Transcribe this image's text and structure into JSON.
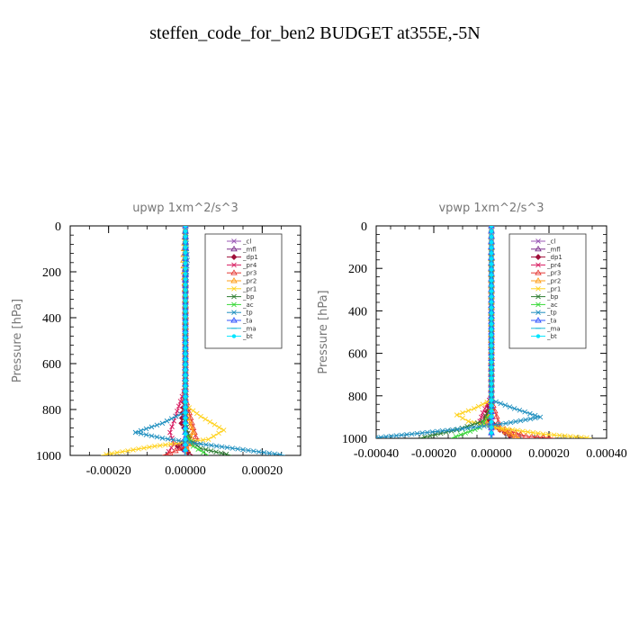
{
  "title": "steffen_code_for_ben2  BUDGET at355E,-5N",
  "colors": {
    "cl": "#9b59b6",
    "mfl": "#7b2d8b",
    "dp1": "#a0103a",
    "pr4": "#d81b60",
    "pr3": "#e53935",
    "pr2": "#ff9f1a",
    "pr1": "#ffd21f",
    "bp": "#2e7d32",
    "ac": "#39d939",
    "tp": "#1f8fbf",
    "ta": "#3355ff",
    "ma": "#22b8d8",
    "bt": "#00e5ff",
    "ink": "#000000",
    "label_gray": "#777777"
  },
  "chart_data": [
    {
      "type": "line",
      "title": "upwp   1xm^2/s^3",
      "xlabel": "",
      "ylabel": "Pressure  [hPa]",
      "xlim": [
        -0.0003,
        0.0003
      ],
      "ylim": [
        1000,
        0
      ],
      "xticks": [
        "-0.00020",
        "0.00000",
        "0.00020"
      ],
      "yticks": [
        "0",
        "200",
        "400",
        "600",
        "800",
        "1000"
      ],
      "legend_position": "top-right",
      "series": [
        {
          "name": "_cl",
          "color_key": "cl",
          "marker": "x",
          "points": [
            [
              0,
              0
            ],
            [
              0,
              200
            ],
            [
              0,
              400
            ],
            [
              0,
              600
            ],
            [
              0,
              800
            ],
            [
              0,
              1000
            ]
          ]
        },
        {
          "name": "_mfl",
          "color_key": "mfl",
          "marker": "triangle",
          "points": [
            [
              0,
              0
            ],
            [
              0,
              300
            ],
            [
              0,
              600
            ],
            [
              0,
              850
            ],
            [
              0,
              950
            ],
            [
              0,
              1000
            ]
          ]
        },
        {
          "name": "_dp1",
          "color_key": "dp1",
          "marker": "diamond",
          "points": [
            [
              0,
              0
            ],
            [
              0,
              700
            ],
            [
              -1e-05,
              860
            ],
            [
              1e-05,
              920
            ],
            [
              -2e-05,
              960
            ],
            [
              2e-05,
              1000
            ]
          ]
        },
        {
          "name": "_pr4",
          "color_key": "pr4",
          "marker": "x",
          "points": [
            [
              0,
              0
            ],
            [
              0,
              700
            ],
            [
              -3e-05,
              850
            ],
            [
              -4e-05,
              900
            ],
            [
              -3e-05,
              950
            ],
            [
              -5e-05,
              1000
            ]
          ]
        },
        {
          "name": "_pr3",
          "color_key": "pr3",
          "marker": "triangle",
          "points": [
            [
              0,
              0
            ],
            [
              0,
              750
            ],
            [
              2e-05,
              880
            ],
            [
              3e-05,
              940
            ],
            [
              -4e-05,
              990
            ],
            [
              -6e-05,
              1000
            ]
          ]
        },
        {
          "name": "_pr2",
          "color_key": "pr2",
          "marker": "triangle",
          "points": [
            [
              0,
              0
            ],
            [
              -5e-06,
              150
            ],
            [
              0,
              300
            ],
            [
              0,
              800
            ],
            [
              2e-05,
              900
            ],
            [
              0,
              1000
            ]
          ]
        },
        {
          "name": "_pr1",
          "color_key": "pr1",
          "marker": "x",
          "points": [
            [
              0,
              0
            ],
            [
              0,
              780
            ],
            [
              4e-05,
              830
            ],
            [
              0.0001,
              890
            ],
            [
              6e-05,
              930
            ],
            [
              -8e-05,
              960
            ],
            [
              -0.00022,
              1000
            ]
          ]
        },
        {
          "name": "_bp",
          "color_key": "bp",
          "marker": "x",
          "points": [
            [
              0,
              0
            ],
            [
              0,
              850
            ],
            [
              1e-05,
              930
            ],
            [
              4e-05,
              970
            ],
            [
              0.00012,
              1000
            ]
          ]
        },
        {
          "name": "_ac",
          "color_key": "ac",
          "marker": "x",
          "points": [
            [
              0,
              0
            ],
            [
              0,
              900
            ],
            [
              2e-05,
              960
            ],
            [
              6e-05,
              1000
            ]
          ]
        },
        {
          "name": "_tp",
          "color_key": "tp",
          "marker": "x",
          "points": [
            [
              0,
              0
            ],
            [
              5e-06,
              150
            ],
            [
              0,
              300
            ],
            [
              0,
              810
            ],
            [
              -6e-05,
              860
            ],
            [
              -0.00013,
              900
            ],
            [
              -6e-05,
              925
            ],
            [
              4e-05,
              950
            ],
            [
              0.00015,
              975
            ],
            [
              0.00026,
              1000
            ]
          ]
        },
        {
          "name": "_ta",
          "color_key": "ta",
          "marker": "triangle",
          "points": [
            [
              0,
              0
            ],
            [
              0,
              500
            ],
            [
              0,
              900
            ],
            [
              0,
              1000
            ]
          ]
        },
        {
          "name": "_ma",
          "color_key": "ma",
          "marker": "dash",
          "points": [
            [
              0,
              0
            ],
            [
              0,
              1000
            ]
          ]
        },
        {
          "name": "_bt",
          "color_key": "bt",
          "marker": "dot",
          "points": [
            [
              0,
              0
            ],
            [
              0,
              1000
            ]
          ]
        }
      ]
    },
    {
      "type": "line",
      "title": "vpwp   1xm^2/s^3",
      "xlabel": "",
      "ylabel": "Pressure  [hPa]",
      "xlim": [
        -0.0004,
        0.0004
      ],
      "ylim": [
        1000,
        0
      ],
      "xticks": [
        "-0.00040",
        "-0.00020",
        "0.00000",
        "0.00020",
        "0.00040"
      ],
      "yticks": [
        "0",
        "200",
        "400",
        "600",
        "800",
        "1000"
      ],
      "legend_position": "top-right",
      "series": [
        {
          "name": "_cl",
          "color_key": "cl",
          "marker": "x",
          "points": [
            [
              0,
              0
            ],
            [
              0,
              200
            ],
            [
              0,
              400
            ],
            [
              0,
              600
            ],
            [
              0,
              800
            ],
            [
              0,
              1000
            ]
          ]
        },
        {
          "name": "_mfl",
          "color_key": "mfl",
          "marker": "triangle",
          "points": [
            [
              0,
              0
            ],
            [
              0,
              300
            ],
            [
              0,
              600
            ],
            [
              0,
              850
            ],
            [
              0,
              950
            ],
            [
              0,
              1000
            ]
          ]
        },
        {
          "name": "_dp1",
          "color_key": "dp1",
          "marker": "diamond",
          "points": [
            [
              0,
              0
            ],
            [
              0,
              800
            ],
            [
              -2e-05,
              900
            ],
            [
              3e-05,
              960
            ],
            [
              8e-05,
              1000
            ]
          ]
        },
        {
          "name": "_pr4",
          "color_key": "pr4",
          "marker": "x",
          "points": [
            [
              0,
              0
            ],
            [
              0,
              800
            ],
            [
              -3e-05,
              880
            ],
            [
              -4e-05,
              920
            ],
            [
              5e-05,
              970
            ],
            [
              0.0001,
              1000
            ]
          ]
        },
        {
          "name": "_pr3",
          "color_key": "pr3",
          "marker": "triangle",
          "points": [
            [
              0,
              0
            ],
            [
              0,
              820
            ],
            [
              3e-05,
              950
            ],
            [
              0.00012,
              990
            ],
            [
              0.00022,
              1000
            ]
          ]
        },
        {
          "name": "_pr2",
          "color_key": "pr2",
          "marker": "triangle",
          "points": [
            [
              0,
              0
            ],
            [
              0,
              850
            ],
            [
              -2e-05,
              920
            ],
            [
              5e-05,
              970
            ],
            [
              0.0001,
              1000
            ]
          ]
        },
        {
          "name": "_pr1",
          "color_key": "pr1",
          "marker": "x",
          "points": [
            [
              0,
              0
            ],
            [
              0,
              820
            ],
            [
              -6e-05,
              860
            ],
            [
              -0.00012,
              890
            ],
            [
              -8e-05,
              920
            ],
            [
              2e-05,
              950
            ],
            [
              0.00018,
              980
            ],
            [
              0.00035,
              1000
            ]
          ]
        },
        {
          "name": "_bp",
          "color_key": "bp",
          "marker": "x",
          "points": [
            [
              0,
              0
            ],
            [
              0,
              850
            ],
            [
              -3e-05,
              920
            ],
            [
              -0.00012,
              960
            ],
            [
              -0.00025,
              1000
            ]
          ]
        },
        {
          "name": "_ac",
          "color_key": "ac",
          "marker": "x",
          "points": [
            [
              0,
              0
            ],
            [
              0,
              880
            ],
            [
              -4e-05,
              950
            ],
            [
              -0.00014,
              1000
            ]
          ]
        },
        {
          "name": "_tp",
          "color_key": "tp",
          "marker": "x",
          "points": [
            [
              0,
              0
            ],
            [
              0,
              180
            ],
            [
              0,
              300
            ],
            [
              0,
              820
            ],
            [
              8e-05,
              860
            ],
            [
              0.00017,
              900
            ],
            [
              5e-05,
              930
            ],
            [
              -0.0001,
              955
            ],
            [
              -0.00024,
              975
            ],
            [
              -0.00042,
              1000
            ]
          ]
        },
        {
          "name": "_ta",
          "color_key": "ta",
          "marker": "triangle",
          "points": [
            [
              0,
              0
            ],
            [
              0,
              500
            ],
            [
              0,
              900
            ],
            [
              0,
              1000
            ]
          ]
        },
        {
          "name": "_ma",
          "color_key": "ma",
          "marker": "dash",
          "points": [
            [
              0,
              0
            ],
            [
              0,
              1000
            ]
          ]
        },
        {
          "name": "_bt",
          "color_key": "bt",
          "marker": "dot",
          "points": [
            [
              0,
              0
            ],
            [
              0,
              1000
            ]
          ]
        }
      ]
    }
  ]
}
